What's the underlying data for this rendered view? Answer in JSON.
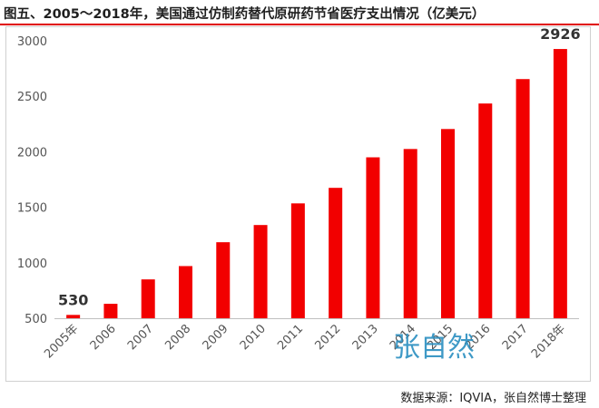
{
  "title": "图五、2005～2018年，美国通过仿制药替代原研药节省医疗支出情况（亿美元）",
  "source": "数据来源：IQVIA，张自然博士整理",
  "watermark": "张自然",
  "colors": {
    "bar": "#f20000",
    "title_rule": "#e00000",
    "axis_text": "#555555",
    "watermark": "#2a8fc0"
  },
  "chart_data": {
    "type": "bar",
    "title": "图五、2005～2018年，美国通过仿制药替代原研药节省医疗支出情况（亿美元）",
    "categories": [
      "2005年",
      "2006",
      "2007",
      "2008",
      "2009",
      "2010",
      "2011",
      "2012",
      "2013",
      "2014",
      "2015",
      "2016",
      "2017",
      "2018年"
    ],
    "values": [
      530,
      630,
      850,
      970,
      1185,
      1340,
      1535,
      1675,
      1950,
      2025,
      2205,
      2435,
      2655,
      2926
    ],
    "data_labels": [
      {
        "index": 0,
        "text": "530"
      },
      {
        "index": 13,
        "text": "2926"
      }
    ],
    "yticks": [
      500,
      1000,
      1500,
      2000,
      2500,
      3000
    ],
    "ylim": [
      500,
      3000
    ],
    "xlabel": "",
    "ylabel": "",
    "grid": false,
    "legend": "none"
  }
}
